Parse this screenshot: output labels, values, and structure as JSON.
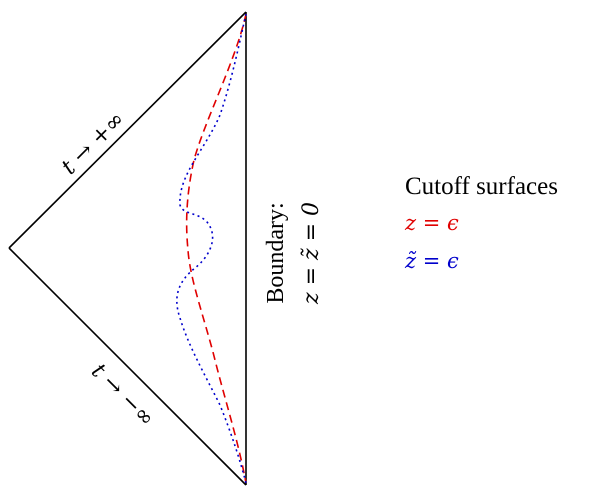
{
  "diagram": {
    "edge_labels": {
      "future": "t → +∞",
      "past": "t → −∞"
    },
    "boundary": {
      "title": "Boundary:",
      "condition": "z = z̃ = 0"
    },
    "legend": {
      "title": "Cutoff surfaces",
      "items": [
        {
          "label": "z = ϵ",
          "color": "#e00000",
          "style": "dashed"
        },
        {
          "label": "z̃ = ϵ",
          "color": "#0000cc",
          "style": "dotted"
        }
      ]
    }
  }
}
